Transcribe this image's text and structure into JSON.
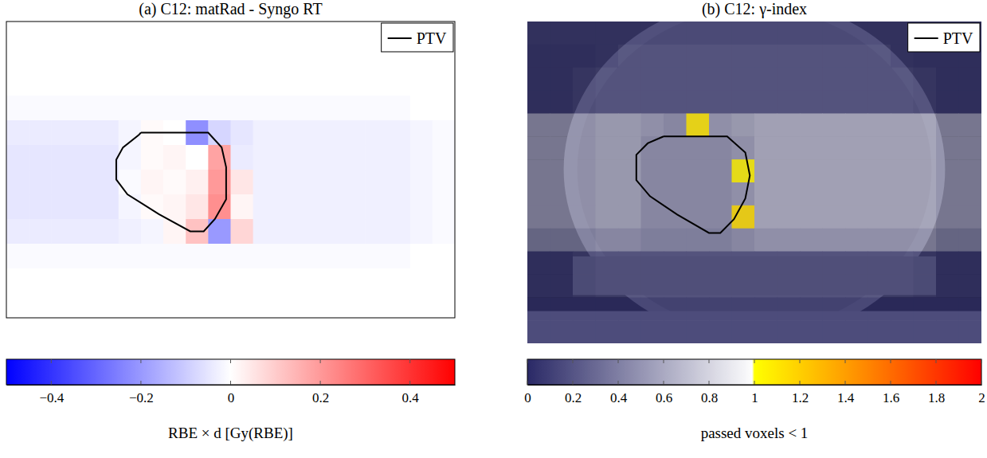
{
  "chart_data": [
    {
      "type": "heatmap",
      "title": "(a) C12: matRad - Syngo RT",
      "xlim": [
        0,
        20
      ],
      "ylim": [
        12,
        0
      ],
      "tick_labels": false,
      "legend": "upper right",
      "cells": [
        [
          0,
          0,
          0,
          0,
          0,
          0,
          0,
          0,
          0,
          0,
          0,
          0,
          0,
          0,
          0,
          0,
          0,
          0,
          0,
          0
        ],
        [
          0,
          0,
          0,
          0,
          0,
          0,
          0,
          0,
          0,
          0,
          0,
          0,
          0,
          0,
          0,
          0,
          0,
          0,
          0,
          0
        ],
        [
          0,
          0,
          0,
          0,
          0,
          0,
          0,
          0,
          0,
          0,
          0,
          0,
          0,
          0,
          0,
          0,
          0,
          0,
          0,
          0
        ],
        [
          -0.01,
          -0.01,
          -0.01,
          -0.01,
          -0.01,
          -0.01,
          -0.01,
          -0.01,
          -0.01,
          -0.01,
          -0.01,
          -0.01,
          -0.01,
          -0.01,
          -0.01,
          -0.01,
          -0.01,
          -0.01,
          0,
          0
        ],
        [
          -0.04,
          -0.04,
          -0.04,
          -0.04,
          -0.04,
          -0.02,
          0.01,
          0,
          -0.22,
          -0.08,
          -0.05,
          -0.03,
          -0.03,
          -0.03,
          -0.03,
          -0.03,
          -0.03,
          -0.03,
          -0.02,
          -0.01
        ],
        [
          -0.05,
          -0.05,
          -0.05,
          -0.05,
          -0.05,
          -0.02,
          0.01,
          0.02,
          0,
          0.18,
          -0.04,
          -0.03,
          -0.03,
          -0.03,
          -0.03,
          -0.03,
          -0.03,
          -0.03,
          -0.02,
          -0.01
        ],
        [
          -0.05,
          -0.05,
          -0.05,
          -0.05,
          -0.05,
          -0.01,
          0.02,
          0.01,
          0.03,
          0.2,
          0.05,
          -0.03,
          -0.03,
          -0.03,
          -0.03,
          -0.03,
          -0.03,
          -0.03,
          -0.02,
          -0.01
        ],
        [
          -0.05,
          -0.05,
          -0.05,
          -0.05,
          -0.05,
          -0.02,
          0.01,
          0.02,
          0.05,
          0.22,
          0.02,
          -0.03,
          -0.03,
          -0.03,
          -0.03,
          -0.03,
          -0.03,
          -0.03,
          -0.02,
          -0.01
        ],
        [
          -0.04,
          -0.04,
          -0.04,
          -0.04,
          -0.04,
          -0.03,
          -0.02,
          0.02,
          0.12,
          -0.2,
          0.08,
          -0.03,
          -0.03,
          -0.03,
          -0.03,
          -0.03,
          -0.03,
          -0.03,
          -0.02,
          -0.01
        ],
        [
          -0.01,
          -0.01,
          -0.01,
          -0.01,
          -0.01,
          -0.01,
          -0.01,
          -0.01,
          -0.01,
          -0.01,
          -0.01,
          -0.01,
          -0.01,
          -0.01,
          -0.01,
          -0.01,
          -0.01,
          -0.01,
          0,
          0
        ],
        [
          0,
          0,
          0,
          0,
          0,
          0,
          0,
          0,
          0,
          0,
          0,
          0,
          0,
          0,
          0,
          0,
          0,
          0,
          0,
          0
        ],
        [
          0,
          0,
          0,
          0,
          0,
          0,
          0,
          0,
          0,
          0,
          0,
          0,
          0,
          0,
          0,
          0,
          0,
          0,
          0,
          0
        ]
      ],
      "colorbar": {
        "range": [
          -0.5,
          0.5
        ],
        "ticks": [
          {
            "value": -0.4,
            "label": "−0.4"
          },
          {
            "value": -0.2,
            "label": "−0.2"
          },
          0,
          0.2,
          0.4
        ],
        "label": "RBE × d [Gy(RBE)]"
      },
      "series": [
        {
          "name": "PTV",
          "type": "line",
          "color": "#000000",
          "x": [
            6.0,
            9.0,
            9.6,
            9.8,
            9.8,
            9.3,
            8.8,
            8.2,
            6.8,
            5.4,
            4.9,
            4.9,
            5.2,
            5.9,
            6.0
          ],
          "values": [
            4.5,
            4.5,
            5.1,
            5.9,
            7.2,
            8.0,
            8.5,
            8.5,
            7.8,
            7.0,
            6.4,
            5.6,
            5.1,
            4.6,
            4.5
          ]
        }
      ]
    },
    {
      "type": "heatmap",
      "title": "(b) C12: γ-index",
      "xlim": [
        0,
        20
      ],
      "ylim": [
        14,
        0
      ],
      "tick_labels": false,
      "legend": "upper right",
      "cells": [
        [
          0.1,
          0.1,
          0.1,
          0.1,
          0.1,
          0.1,
          0.1,
          0.1,
          0.1,
          0.1,
          0.1,
          0.1,
          0.1,
          0.1,
          0.1,
          0.1,
          0.1,
          0.1,
          0.1,
          0.1
        ],
        [
          0.08,
          0.08,
          0.08,
          0.1,
          0.15,
          0.15,
          0.15,
          0.15,
          0.15,
          0.15,
          0.15,
          0.15,
          0.15,
          0.15,
          0.15,
          0.15,
          0.1,
          0.08,
          0.08,
          0.08
        ],
        [
          0.08,
          0.08,
          0.12,
          0.15,
          0.15,
          0.15,
          0.15,
          0.15,
          0.15,
          0.15,
          0.15,
          0.15,
          0.15,
          0.15,
          0.15,
          0.15,
          0.15,
          0.12,
          0.08,
          0.08
        ],
        [
          0.08,
          0.08,
          0.12,
          0.15,
          0.15,
          0.15,
          0.15,
          0.15,
          0.15,
          0.15,
          0.15,
          0.15,
          0.15,
          0.15,
          0.15,
          0.15,
          0.15,
          0.12,
          0.08,
          0.08
        ],
        [
          0.5,
          0.5,
          0.5,
          0.55,
          0.55,
          0.5,
          0.45,
          1.1,
          0.5,
          0.55,
          0.6,
          0.6,
          0.6,
          0.6,
          0.6,
          0.6,
          0.6,
          0.6,
          0.5,
          0.5
        ],
        [
          0.5,
          0.5,
          0.5,
          0.55,
          0.55,
          0.45,
          0.45,
          0.45,
          0.45,
          0.5,
          0.6,
          0.6,
          0.6,
          0.6,
          0.6,
          0.6,
          0.6,
          0.6,
          0.5,
          0.5
        ],
        [
          0.5,
          0.5,
          0.5,
          0.55,
          0.55,
          0.45,
          0.45,
          0.45,
          0.45,
          1.05,
          0.6,
          0.6,
          0.6,
          0.6,
          0.6,
          0.6,
          0.6,
          0.6,
          0.5,
          0.5
        ],
        [
          0.5,
          0.5,
          0.5,
          0.55,
          0.55,
          0.45,
          0.45,
          0.45,
          0.45,
          0.5,
          0.6,
          0.6,
          0.6,
          0.6,
          0.6,
          0.6,
          0.6,
          0.6,
          0.5,
          0.5
        ],
        [
          0.5,
          0.5,
          0.5,
          0.55,
          0.55,
          0.45,
          0.45,
          0.45,
          0.45,
          1.15,
          0.6,
          0.6,
          0.6,
          0.6,
          0.6,
          0.6,
          0.6,
          0.6,
          0.5,
          0.5
        ],
        [
          0.4,
          0.4,
          0.4,
          0.45,
          0.45,
          0.4,
          0.4,
          0.4,
          0.4,
          0.45,
          0.5,
          0.5,
          0.5,
          0.5,
          0.5,
          0.5,
          0.5,
          0.5,
          0.4,
          0.4
        ],
        [
          0.08,
          0.08,
          0.12,
          0.15,
          0.15,
          0.15,
          0.15,
          0.15,
          0.15,
          0.15,
          0.15,
          0.15,
          0.15,
          0.15,
          0.15,
          0.15,
          0.15,
          0.12,
          0.08,
          0.08
        ],
        [
          0.08,
          0.08,
          0.12,
          0.15,
          0.15,
          0.15,
          0.15,
          0.15,
          0.15,
          0.15,
          0.15,
          0.15,
          0.15,
          0.15,
          0.15,
          0.15,
          0.15,
          0.12,
          0.08,
          0.08
        ],
        [
          0.05,
          0.05,
          0.05,
          0.05,
          0.05,
          0.05,
          0.05,
          0.05,
          0.05,
          0.05,
          0.05,
          0.05,
          0.05,
          0.05,
          0.05,
          0.05,
          0.05,
          0.05,
          0.05,
          0.05
        ],
        [
          0.05,
          0.05,
          0.05,
          0.05,
          0.05,
          0.05,
          0.05,
          0.05,
          0.05,
          0.05,
          0.05,
          0.05,
          0.05,
          0.05,
          0.05,
          0.05,
          0.05,
          0.05,
          0.05,
          0.05
        ]
      ],
      "colorbar": {
        "range": [
          0,
          2
        ],
        "ticks": [
          0,
          0.2,
          0.4,
          0.6,
          0.8,
          1,
          1.2,
          1.4,
          1.6,
          1.8,
          2
        ],
        "label": "passed voxels < 1"
      },
      "series": [
        {
          "name": "PTV",
          "type": "line",
          "color": "#000000",
          "x": [
            6.0,
            8.8,
            9.6,
            9.8,
            9.6,
            9.1,
            8.5,
            8.0,
            6.6,
            5.4,
            4.8,
            4.8,
            5.3,
            6.0
          ],
          "values": [
            5.0,
            5.0,
            5.7,
            6.7,
            7.7,
            8.6,
            9.2,
            9.2,
            8.4,
            7.6,
            6.9,
            5.8,
            5.3,
            5.0
          ]
        }
      ]
    }
  ]
}
